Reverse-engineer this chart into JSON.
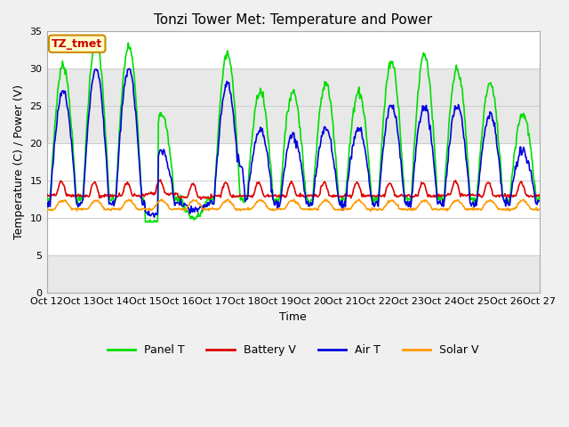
{
  "title": "Tonzi Tower Met: Temperature and Power",
  "xlabel": "Time",
  "ylabel": "Temperature (C) / Power (V)",
  "annotation_text": "TZ_tmet",
  "ylim": [
    0,
    35
  ],
  "yticks": [
    0,
    5,
    10,
    15,
    20,
    25,
    30,
    35
  ],
  "xlim": [
    0,
    15
  ],
  "xtick_labels": [
    "Oct 12",
    "Oct 13",
    "Oct 14",
    "Oct 15",
    "Oct 16",
    "Oct 17",
    "Oct 18",
    "Oct 19",
    "Oct 20",
    "Oct 21",
    "Oct 22",
    "Oct 23",
    "Oct 24",
    "Oct 25",
    "Oct 26",
    "Oct 27"
  ],
  "xtick_positions": [
    0,
    1,
    2,
    3,
    4,
    5,
    6,
    7,
    8,
    9,
    10,
    11,
    12,
    13,
    14,
    15
  ],
  "series": {
    "panel_t": {
      "label": "Panel T",
      "color": "#00dd00",
      "lw": 1.2
    },
    "battery_v": {
      "label": "Battery V",
      "color": "#dd0000",
      "lw": 1.2
    },
    "air_t": {
      "label": "Air T",
      "color": "#0000dd",
      "lw": 1.2
    },
    "solar_v": {
      "label": "Solar V",
      "color": "#ff9900",
      "lw": 1.2
    }
  },
  "fig_bg": "#f0f0f0",
  "ax_bg": "#ffffff",
  "band_colors": [
    "#ffffff",
    "#e8e8e8"
  ],
  "band_ranges": [
    [
      0,
      5
    ],
    [
      5,
      10
    ],
    [
      10,
      15
    ],
    [
      15,
      20
    ],
    [
      20,
      25
    ],
    [
      25,
      30
    ],
    [
      30,
      35
    ]
  ],
  "band_pattern": [
    1,
    0,
    0,
    0,
    1,
    1,
    0
  ],
  "annotation_fc": "#ffffcc",
  "annotation_ec": "#cc8800",
  "annotation_tc": "#cc0000",
  "title_fontsize": 11,
  "label_fontsize": 9,
  "tick_fontsize": 8,
  "legend_fontsize": 9
}
